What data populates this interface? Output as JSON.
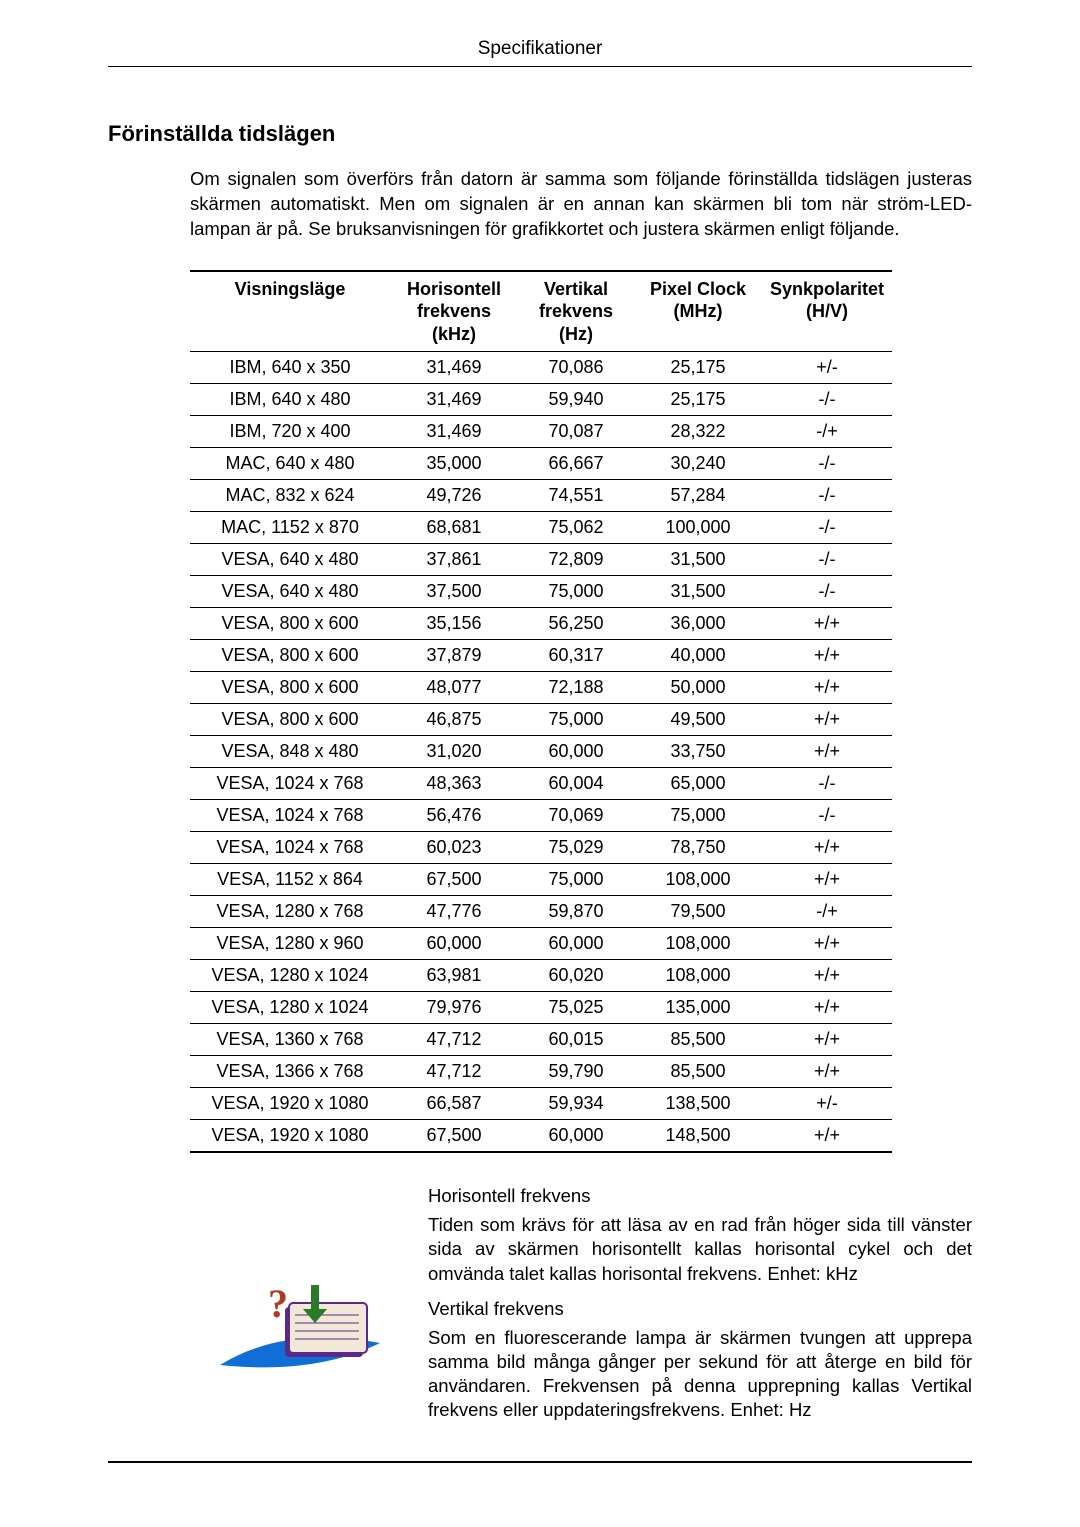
{
  "header": {
    "title": "Specifikationer"
  },
  "section": {
    "heading": "Förinställda tidslägen"
  },
  "intro": "Om signalen som överförs från datorn är samma som följande förinställda tidslägen justeras skärmen automatiskt. Men om signalen är en annan kan skärmen bli tom när ström-LED-lampan är på. Se bruksanvisningen för grafikkortet och justera skärmen enligt följande.",
  "table": {
    "columns": {
      "mode": "Visningsläge",
      "hf": "Horisontell frekvens (kHz)",
      "vf": "Vertikal frekvens (Hz)",
      "pc": "Pixel Clock (MHz)",
      "sp": "Synkpolaritet (H/V)"
    },
    "rows": [
      {
        "mode": "IBM, 640 x 350",
        "hf": "31,469",
        "vf": "70,086",
        "pc": "25,175",
        "sp": "+/-"
      },
      {
        "mode": "IBM, 640 x 480",
        "hf": "31,469",
        "vf": "59,940",
        "pc": "25,175",
        "sp": "-/-"
      },
      {
        "mode": "IBM, 720 x 400",
        "hf": "31,469",
        "vf": "70,087",
        "pc": "28,322",
        "sp": "-/+"
      },
      {
        "mode": "MAC, 640 x 480",
        "hf": "35,000",
        "vf": "66,667",
        "pc": "30,240",
        "sp": "-/-"
      },
      {
        "mode": "MAC, 832 x 624",
        "hf": "49,726",
        "vf": "74,551",
        "pc": "57,284",
        "sp": "-/-"
      },
      {
        "mode": "MAC, 1152 x 870",
        "hf": "68,681",
        "vf": "75,062",
        "pc": "100,000",
        "sp": "-/-"
      },
      {
        "mode": "VESA, 640 x 480",
        "hf": "37,861",
        "vf": "72,809",
        "pc": "31,500",
        "sp": "-/-"
      },
      {
        "mode": "VESA, 640 x 480",
        "hf": "37,500",
        "vf": "75,000",
        "pc": "31,500",
        "sp": "-/-"
      },
      {
        "mode": "VESA, 800 x 600",
        "hf": "35,156",
        "vf": "56,250",
        "pc": "36,000",
        "sp": "+/+"
      },
      {
        "mode": "VESA, 800 x 600",
        "hf": "37,879",
        "vf": "60,317",
        "pc": "40,000",
        "sp": "+/+"
      },
      {
        "mode": "VESA, 800 x 600",
        "hf": "48,077",
        "vf": "72,188",
        "pc": "50,000",
        "sp": "+/+"
      },
      {
        "mode": "VESA, 800 x 600",
        "hf": "46,875",
        "vf": "75,000",
        "pc": "49,500",
        "sp": "+/+"
      },
      {
        "mode": "VESA, 848 x 480",
        "hf": "31,020",
        "vf": "60,000",
        "pc": "33,750",
        "sp": "+/+"
      },
      {
        "mode": "VESA, 1024 x 768",
        "hf": "48,363",
        "vf": "60,004",
        "pc": "65,000",
        "sp": "-/-"
      },
      {
        "mode": "VESA, 1024 x 768",
        "hf": "56,476",
        "vf": "70,069",
        "pc": "75,000",
        "sp": "-/-"
      },
      {
        "mode": "VESA, 1024 x 768",
        "hf": "60,023",
        "vf": "75,029",
        "pc": "78,750",
        "sp": "+/+"
      },
      {
        "mode": "VESA, 1152 x 864",
        "hf": "67,500",
        "vf": "75,000",
        "pc": "108,000",
        "sp": "+/+"
      },
      {
        "mode": "VESA, 1280 x 768",
        "hf": "47,776",
        "vf": "59,870",
        "pc": "79,500",
        "sp": "-/+"
      },
      {
        "mode": "VESA, 1280 x 960",
        "hf": "60,000",
        "vf": "60,000",
        "pc": "108,000",
        "sp": "+/+"
      },
      {
        "mode": "VESA, 1280 x 1024",
        "hf": "63,981",
        "vf": "60,020",
        "pc": "108,000",
        "sp": "+/+"
      },
      {
        "mode": "VESA, 1280 x 1024",
        "hf": "79,976",
        "vf": "75,025",
        "pc": "135,000",
        "sp": "+/+"
      },
      {
        "mode": "VESA, 1360 x 768",
        "hf": "47,712",
        "vf": "60,015",
        "pc": "85,500",
        "sp": "+/+"
      },
      {
        "mode": "VESA, 1366 x 768",
        "hf": "47,712",
        "vf": "59,790",
        "pc": "85,500",
        "sp": "+/+"
      },
      {
        "mode": "VESA, 1920 x 1080",
        "hf": "66,587",
        "vf": "59,934",
        "pc": "138,500",
        "sp": "+/-"
      },
      {
        "mode": "VESA, 1920 x 1080",
        "hf": "67,500",
        "vf": "60,000",
        "pc": "148,500",
        "sp": "+/+"
      }
    ]
  },
  "defs": {
    "hf_title": "Horisontell frekvens",
    "hf_body": "Tiden som krävs för att läsa av en rad från höger sida till vänster sida av skärmen horisontellt kallas horisontal cykel och det omvända talet kallas horisontal frekvens. Enhet: kHz",
    "vf_title": "Vertikal frekvens",
    "vf_body": "Som en fluorescerande lampa är skärmen tvungen att upprepa samma bild många gånger per sekund för att återge en bild för användaren. Frekvensen på denna upprepning kallas Vertikal frekvens eller uppdateringsfrekvens. Enhet: Hz"
  },
  "icon_colors": {
    "swoosh": "#0f6fd6",
    "book_cover": "#5a2a8a",
    "book_page": "#f2e8d8",
    "qmark": "#b33a1e",
    "arrow": "#2a7a2a"
  }
}
